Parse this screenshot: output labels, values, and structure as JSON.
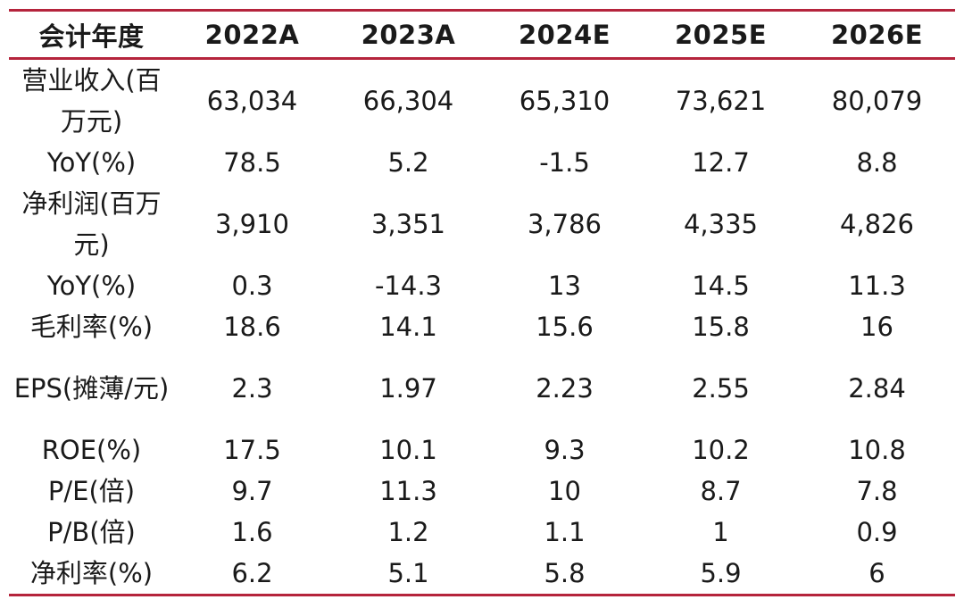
{
  "table": {
    "header": [
      "会计年度",
      "2022A",
      "2023A",
      "2024E",
      "2025E",
      "2026E"
    ],
    "rows": [
      {
        "label": "营业收入(百万元)",
        "values": [
          "63,034",
          "66,304",
          "65,310",
          "73,621",
          "80,079"
        ]
      },
      {
        "label": "YoY(%)",
        "values": [
          "78.5",
          "5.2",
          "-1.5",
          "12.7",
          "8.8"
        ]
      },
      {
        "label": "净利润(百万元)",
        "values": [
          "3,910",
          "3,351",
          "3,786",
          "4,335",
          "4,826"
        ]
      },
      {
        "label": "YoY(%)",
        "values": [
          "0.3",
          "-14.3",
          "13",
          "14.5",
          "11.3"
        ]
      },
      {
        "label": "毛利率(%)",
        "values": [
          "18.6",
          "14.1",
          "15.6",
          "15.8",
          "16"
        ]
      },
      {
        "label": "EPS(摊薄/元)",
        "values": [
          "2.3",
          "1.97",
          "2.23",
          "2.55",
          "2.84"
        ]
      },
      {
        "label": "ROE(%)",
        "values": [
          "17.5",
          "10.1",
          "9.3",
          "10.2",
          "10.8"
        ]
      },
      {
        "label": "P/E(倍)",
        "values": [
          "9.7",
          "11.3",
          "10",
          "8.7",
          "7.8"
        ]
      },
      {
        "label": "P/B(倍)",
        "values": [
          "1.6",
          "1.2",
          "1.1",
          "1",
          "0.9"
        ]
      },
      {
        "label": "净利率(%)",
        "values": [
          "6.2",
          "5.1",
          "5.8",
          "5.9",
          "6"
        ]
      }
    ]
  },
  "colors": {
    "rule": "#b5243c",
    "text": "#1a1a1a",
    "background": "#ffffff"
  }
}
